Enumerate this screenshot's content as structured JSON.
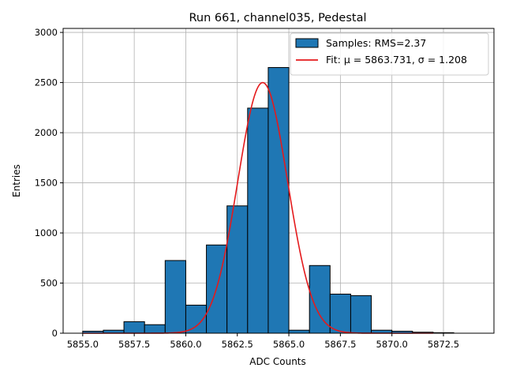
{
  "chart_data": {
    "type": "bar",
    "title": "Run 661, channel035, Pedestal",
    "xlabel": "ADC Counts",
    "ylabel": "Entries",
    "xlim": [
      5854.05,
      5874.95
    ],
    "ylim": [
      0,
      3040
    ],
    "grid": true,
    "legend_position": "top-right",
    "x_ticks": [
      5855.0,
      5857.5,
      5860.0,
      5862.5,
      5865.0,
      5867.5,
      5870.0,
      5872.5
    ],
    "x_tick_labels": [
      "5855.0",
      "5857.5",
      "5860.0",
      "5862.5",
      "5865.0",
      "5867.5",
      "5870.0",
      "5872.5"
    ],
    "y_ticks": [
      0,
      500,
      1000,
      1500,
      2000,
      2500,
      3000
    ],
    "y_tick_labels": [
      "0",
      "500",
      "1000",
      "1500",
      "2000",
      "2500",
      "3000"
    ],
    "bin_edges": [
      5855,
      5856,
      5857,
      5858,
      5859,
      5860,
      5861,
      5862,
      5863,
      5864,
      5865,
      5866,
      5867,
      5868,
      5869,
      5870,
      5871,
      5872,
      5873,
      5874
    ],
    "values": [
      20,
      30,
      115,
      85,
      725,
      280,
      880,
      1270,
      2245,
      2650,
      30,
      675,
      390,
      375,
      30,
      20,
      10,
      5,
      0
    ],
    "bar_color": "#1f77b4",
    "fit": {
      "mu": 5863.731,
      "sigma": 1.208,
      "amplitude": 2500,
      "x_range": [
        5855,
        5872
      ],
      "color": "#e41a1c"
    },
    "legend": [
      {
        "label": "Samples: RMS=2.37",
        "kind": "patch",
        "color": "#1f77b4"
      },
      {
        "label": "Fit: μ = 5863.731, σ = 1.208",
        "kind": "line",
        "color": "#e41a1c"
      }
    ]
  }
}
